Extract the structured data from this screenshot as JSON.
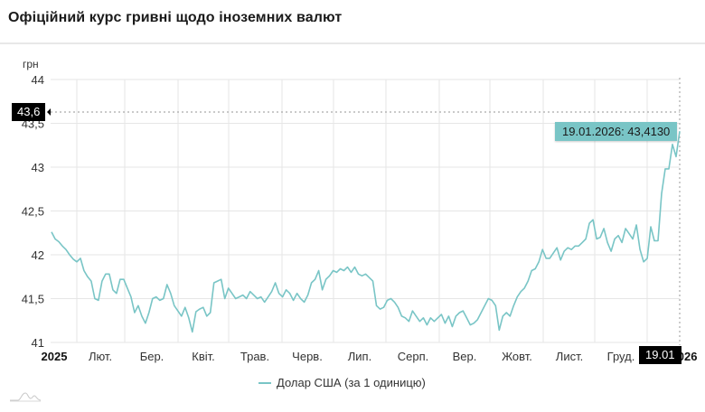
{
  "header": {
    "title": "Офіційний курс гривні щодо іноземних валют"
  },
  "chart_data": {
    "type": "line",
    "title": "Офіційний курс гривні щодо іноземних валют",
    "ylabel": "грн",
    "xlabel": "",
    "ylim": [
      41,
      44
    ],
    "yticks": [
      "41",
      "41,5",
      "42",
      "42,5",
      "43",
      "43,5",
      "44"
    ],
    "xticks": [
      "2025",
      "Лют.",
      "Бер.",
      "Квіт.",
      "Трав.",
      "Черв.",
      "Лип.",
      "Серп.",
      "Вер.",
      "Жовт.",
      "Лист.",
      "Груд.",
      "2026"
    ],
    "grid": true,
    "legend_position": "bottom",
    "series": [
      {
        "name": "Долар США (за 1 одиницю)",
        "color": "#79c5c6",
        "values": [
          42.26,
          42.18,
          42.15,
          42.1,
          42.06,
          42.0,
          41.95,
          41.92,
          41.96,
          41.82,
          41.75,
          41.7,
          41.5,
          41.48,
          41.7,
          41.78,
          41.78,
          41.6,
          41.56,
          41.72,
          41.72,
          41.62,
          41.52,
          41.34,
          41.42,
          41.3,
          41.22,
          41.34,
          41.5,
          41.52,
          41.48,
          41.5,
          41.66,
          41.56,
          41.42,
          41.36,
          41.3,
          41.4,
          41.28,
          41.12,
          41.35,
          41.38,
          41.4,
          41.3,
          41.34,
          41.68,
          41.7,
          41.72,
          41.5,
          41.62,
          41.56,
          41.5,
          41.52,
          41.54,
          41.5,
          41.58,
          41.54,
          41.5,
          41.52,
          41.46,
          41.52,
          41.58,
          41.68,
          41.56,
          41.52,
          41.6,
          41.56,
          41.48,
          41.56,
          41.5,
          41.46,
          41.54,
          41.68,
          41.72,
          41.82,
          41.6,
          41.72,
          41.76,
          41.82,
          41.8,
          41.84,
          41.82,
          41.86,
          41.8,
          41.86,
          41.78,
          41.76,
          41.78,
          41.74,
          41.7,
          41.42,
          41.38,
          41.4,
          41.48,
          41.5,
          41.46,
          41.4,
          41.3,
          41.28,
          41.24,
          41.36,
          41.3,
          41.24,
          41.28,
          41.2,
          41.28,
          41.24,
          41.28,
          41.32,
          41.22,
          41.3,
          41.18,
          41.3,
          41.34,
          41.36,
          41.28,
          41.2,
          41.22,
          41.26,
          41.34,
          41.42,
          41.5,
          41.48,
          41.42,
          41.14,
          41.3,
          41.34,
          41.3,
          41.42,
          41.52,
          41.58,
          41.62,
          41.7,
          41.82,
          41.84,
          41.92,
          42.06,
          41.96,
          41.96,
          42.02,
          42.08,
          41.94,
          42.04,
          42.08,
          42.06,
          42.1,
          42.1,
          42.14,
          42.18,
          42.36,
          42.4,
          42.18,
          42.2,
          42.3,
          42.14,
          42.04,
          42.18,
          42.22,
          42.14,
          42.3,
          42.24,
          42.18,
          42.34,
          42.06,
          41.92,
          41.96,
          42.32,
          42.16,
          42.16,
          42.7,
          42.98,
          42.98,
          43.26,
          43.12,
          43.41
        ]
      }
    ],
    "annotations": {
      "crosshair_y_label": "43,6",
      "crosshair_x_label": "19.01",
      "tooltip": "19.01.2026: 43,4130"
    }
  },
  "legend": {
    "items": [
      {
        "label": "Долар США (за 1 одиницю)",
        "color": "#79c5c6"
      }
    ]
  },
  "colors": {
    "line": "#79c5c6",
    "grid": "#e6e6e6",
    "badge": "#000000",
    "tooltip_bg": "#79c5c6"
  }
}
